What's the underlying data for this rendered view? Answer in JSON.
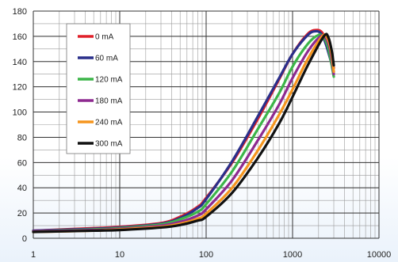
{
  "chart_data": {
    "type": "line",
    "title": "",
    "xlabel": "",
    "ylabel": "",
    "xscale": "log",
    "xlim": [
      1,
      10000
    ],
    "ylim": [
      0,
      180
    ],
    "grid": true,
    "legend_position": "top-left",
    "x_tick_labels": [
      "1",
      "10",
      "100",
      "1000",
      "10000"
    ],
    "y_tick_labels": [
      "0",
      "20",
      "40",
      "60",
      "80",
      "100",
      "120",
      "140",
      "160",
      "180"
    ],
    "series": [
      {
        "name": "0 mA",
        "color": "#e0202a",
        "x": [
          1,
          5,
          10,
          30,
          50,
          80,
          100,
          200,
          400,
          700,
          1000,
          1500,
          1900,
          2200,
          2500,
          3000
        ],
        "y": [
          6,
          8,
          9,
          12,
          17,
          25,
          32,
          60,
          95,
          126,
          146,
          162,
          165,
          163,
          155,
          135
        ]
      },
      {
        "name": "60 mA",
        "color": "#2a2f8a",
        "x": [
          1,
          5,
          10,
          30,
          50,
          80,
          100,
          200,
          400,
          700,
          1000,
          1500,
          1850,
          2150,
          2450,
          3000
        ],
        "y": [
          6,
          7.5,
          8.5,
          11.5,
          16,
          24,
          31,
          61,
          97,
          127,
          146,
          161,
          164,
          162,
          153,
          132
        ]
      },
      {
        "name": "120 mA",
        "color": "#3cb549",
        "x": [
          1,
          5,
          10,
          30,
          50,
          80,
          100,
          200,
          400,
          700,
          1000,
          1500,
          2000,
          2300,
          2600,
          3000
        ],
        "y": [
          5.5,
          7,
          8,
          11,
          15,
          21,
          27,
          53,
          87,
          115,
          136,
          154,
          161,
          159,
          150,
          128
        ]
      },
      {
        "name": "180 mA",
        "color": "#8e2a90",
        "x": [
          1,
          5,
          10,
          30,
          50,
          80,
          100,
          200,
          400,
          700,
          1000,
          1500,
          2100,
          2400,
          2700,
          3000
        ],
        "y": [
          5.5,
          6.5,
          7.5,
          10,
          13,
          18,
          23,
          46,
          78,
          106,
          127,
          148,
          160,
          159,
          150,
          130
        ]
      },
      {
        "name": "240 mA",
        "color": "#f5951e",
        "x": [
          1,
          5,
          10,
          30,
          50,
          80,
          100,
          200,
          400,
          700,
          1000,
          1500,
          2200,
          2500,
          2800,
          3000
        ],
        "y": [
          5,
          6,
          7,
          9,
          11.5,
          15.5,
          19.5,
          40,
          70,
          98,
          118,
          142,
          160,
          159,
          148,
          132
        ]
      },
      {
        "name": "300 mA",
        "color": "#111111",
        "x": [
          1,
          5,
          10,
          30,
          50,
          80,
          100,
          200,
          400,
          700,
          1000,
          1500,
          2300,
          2600,
          2850,
          3000
        ],
        "y": [
          5,
          6,
          6.5,
          8.5,
          10.5,
          14,
          17,
          36,
          64,
          91,
          112,
          137,
          160,
          159,
          148,
          137
        ]
      }
    ]
  }
}
